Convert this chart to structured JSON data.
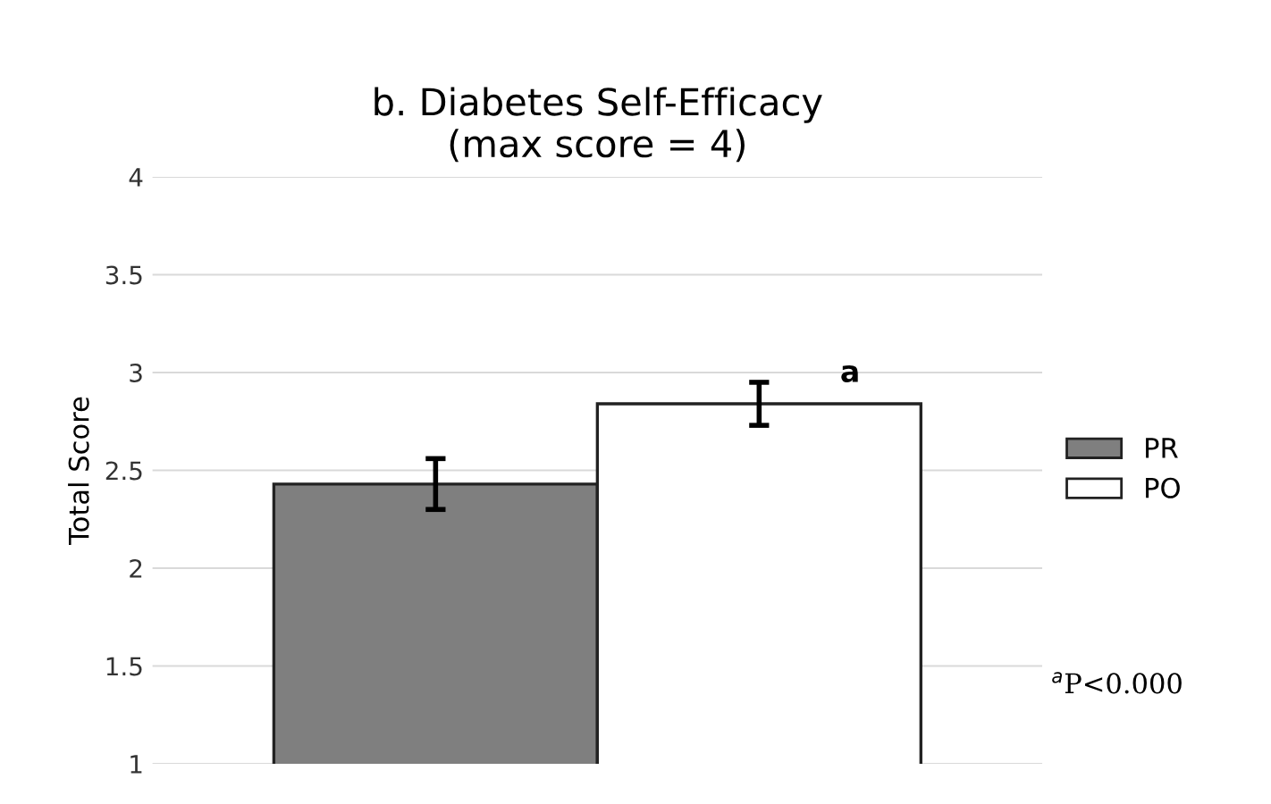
{
  "chart_data": {
    "type": "bar",
    "title": "b. Diabetes Self-Efficacy\n(max score = 4)",
    "ylabel": "Total Score",
    "categories": [
      null
    ],
    "series": [
      {
        "name": "PR",
        "color": "#7f7f7f",
        "values": [
          2.43
        ],
        "errors": [
          0.13
        ]
      },
      {
        "name": "PO",
        "color": "#ffffff",
        "values": [
          2.84
        ],
        "errors": [
          0.11
        ]
      }
    ],
    "ylim": [
      1,
      4
    ],
    "yticks": [
      1,
      1.5,
      2,
      2.5,
      3,
      3.5,
      4
    ],
    "grid": "y",
    "legend": "right",
    "annotations": [
      "a",
      "$^{a}$P<0.000"
    ]
  }
}
